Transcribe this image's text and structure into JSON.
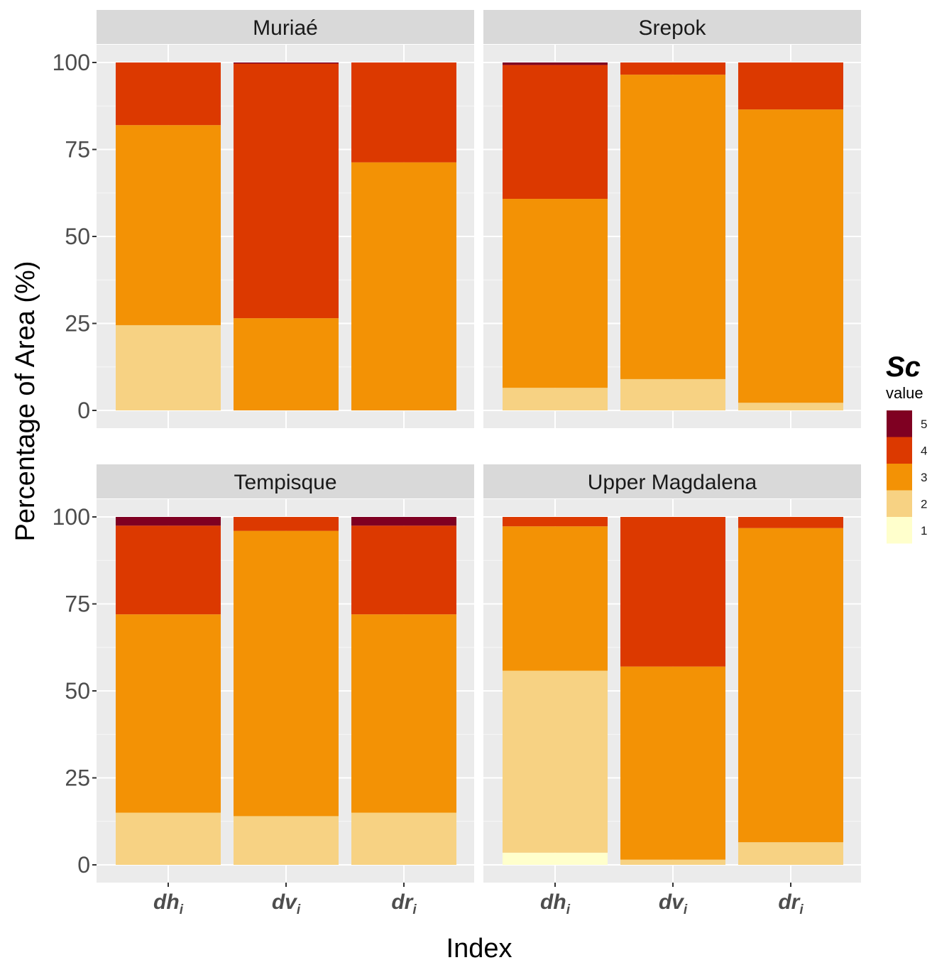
{
  "chart_data": {
    "type": "bar",
    "stacked": true,
    "xlabel": "Index",
    "ylabel": "Percentage of Area (%)",
    "ylim": [
      0,
      100
    ],
    "yticks": [
      "0",
      "25",
      "50",
      "75",
      "100"
    ],
    "categories": [
      {
        "main": "dh",
        "sub": "i"
      },
      {
        "main": "dv",
        "sub": "i"
      },
      {
        "main": "dr",
        "sub": "i"
      }
    ],
    "grid": true,
    "legend": {
      "title": "Sc",
      "subtitle": "value",
      "placement": "right",
      "items": [
        {
          "label": "5",
          "color": "#7f0022"
        },
        {
          "label": "4",
          "color": "#dc3900"
        },
        {
          "label": "3",
          "color": "#f39205"
        },
        {
          "label": "2",
          "color": "#f7d283"
        },
        {
          "label": "1",
          "color": "#ffffcc"
        }
      ]
    },
    "stack_order_bottom_to_top": [
      "1",
      "2",
      "3",
      "4",
      "5"
    ],
    "panels": [
      {
        "title": "Muriaé",
        "bars": [
          {
            "category": "dh",
            "values": {
              "1": 0,
              "2": 24.5,
              "3": 57.5,
              "4": 18,
              "5": 0
            }
          },
          {
            "category": "dv",
            "values": {
              "1": 0,
              "2": 0,
              "3": 26.5,
              "4": 73.2,
              "5": 0.3
            }
          },
          {
            "category": "dr",
            "values": {
              "1": 0,
              "2": 0,
              "3": 71.3,
              "4": 28.7,
              "5": 0
            }
          }
        ]
      },
      {
        "title": "Srepok",
        "bars": [
          {
            "category": "dh",
            "values": {
              "1": 0,
              "2": 6.5,
              "3": 54.3,
              "4": 38.5,
              "5": 0.7
            }
          },
          {
            "category": "dv",
            "values": {
              "1": 0,
              "2": 9,
              "3": 87.5,
              "4": 3.5,
              "5": 0
            }
          },
          {
            "category": "dr",
            "values": {
              "1": 0,
              "2": 2.2,
              "3": 84.3,
              "4": 13.5,
              "5": 0
            }
          }
        ]
      },
      {
        "title": "Tempisque",
        "bars": [
          {
            "category": "dh",
            "values": {
              "1": 0,
              "2": 15,
              "3": 57,
              "4": 25.5,
              "5": 2.5
            }
          },
          {
            "category": "dv",
            "values": {
              "1": 0,
              "2": 14,
              "3": 82,
              "4": 4,
              "5": 0
            }
          },
          {
            "category": "dr",
            "values": {
              "1": 0,
              "2": 15,
              "3": 57,
              "4": 25.5,
              "5": 2.5
            }
          }
        ]
      },
      {
        "title": "Upper Magdalena",
        "bars": [
          {
            "category": "dh",
            "values": {
              "1": 3.5,
              "2": 52.3,
              "3": 41.5,
              "4": 2.7,
              "5": 0
            }
          },
          {
            "category": "dv",
            "values": {
              "1": 0,
              "2": 1.5,
              "3": 55.5,
              "4": 43,
              "5": 0
            }
          },
          {
            "category": "dr",
            "values": {
              "1": 0,
              "2": 6.5,
              "3": 90.3,
              "4": 3.2,
              "5": 0
            }
          }
        ]
      }
    ]
  }
}
